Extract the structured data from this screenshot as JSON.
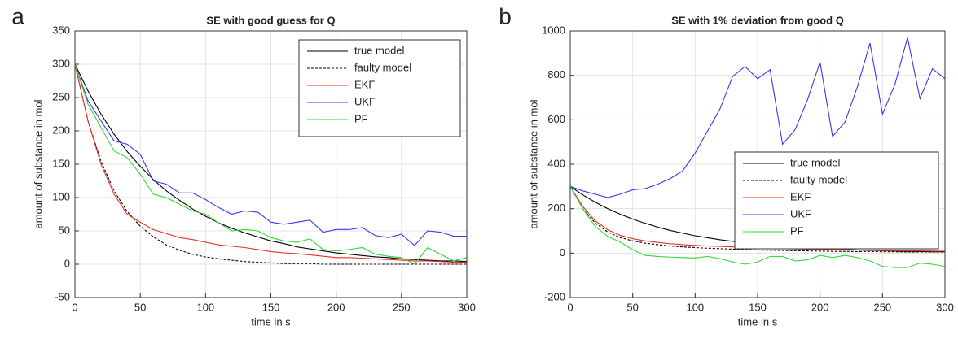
{
  "chart_data": [
    {
      "type": "line",
      "panel_label": "a",
      "title": "SE with good guess for Q",
      "x_label": "time in s",
      "y_label": "amount of substance in mol",
      "x": [
        0,
        10,
        20,
        30,
        40,
        50,
        60,
        70,
        80,
        90,
        100,
        110,
        120,
        130,
        140,
        150,
        160,
        170,
        180,
        190,
        200,
        210,
        220,
        230,
        240,
        250,
        260,
        270,
        280,
        290,
        300
      ],
      "xlim": [
        0,
        300
      ],
      "xticks": [
        0,
        50,
        100,
        150,
        200,
        250,
        300
      ],
      "ylim": [
        -50,
        350
      ],
      "yticks": [
        -50,
        0,
        50,
        100,
        150,
        200,
        250,
        300,
        350
      ],
      "grid": true,
      "legend": "upper right",
      "series": [
        {
          "name": "true model",
          "color": "#000000",
          "linestyle": "solid",
          "values": [
            300,
            260,
            225,
            195,
            169,
            147,
            127,
            110,
            96,
            83,
            72,
            62,
            54,
            47,
            41,
            35,
            31,
            26,
            23,
            20,
            17,
            15,
            13,
            11,
            10,
            8,
            7,
            6,
            5,
            5,
            4
          ]
        },
        {
          "name": "faulty model",
          "color": "#000000",
          "linestyle": "dashed",
          "values": [
            300,
            215,
            154,
            110,
            79,
            57,
            41,
            29,
            21,
            15,
            11,
            8,
            6,
            4,
            3,
            2,
            1,
            1,
            1,
            0,
            0,
            0,
            0,
            0,
            0,
            0,
            0,
            0,
            0,
            0,
            0
          ]
        },
        {
          "name": "EKF",
          "color": "#e8302a",
          "linestyle": "solid",
          "values": [
            300,
            215,
            150,
            105,
            75,
            63,
            52,
            46,
            40,
            37,
            33,
            29,
            27,
            25,
            22,
            19,
            17,
            16,
            14,
            12,
            10,
            10,
            9,
            8,
            7,
            6,
            5,
            5,
            4,
            3,
            3
          ]
        },
        {
          "name": "UKF",
          "color": "#3838f0",
          "linestyle": "solid",
          "values": [
            300,
            245,
            215,
            185,
            180,
            165,
            125,
            120,
            107,
            107,
            97,
            85,
            75,
            80,
            78,
            63,
            60,
            63,
            66,
            48,
            52,
            52,
            55,
            43,
            40,
            45,
            28,
            50,
            48,
            42,
            42
          ]
        },
        {
          "name": "PF",
          "color": "#35d735",
          "linestyle": "solid",
          "values": [
            300,
            240,
            205,
            170,
            160,
            135,
            105,
            100,
            90,
            80,
            75,
            62,
            50,
            52,
            50,
            40,
            35,
            33,
            38,
            22,
            20,
            22,
            25,
            15,
            12,
            10,
            0,
            25,
            15,
            5,
            10
          ]
        }
      ]
    },
    {
      "type": "line",
      "panel_label": "b",
      "title": "SE with 1% deviation from good Q",
      "x_label": "time in s",
      "y_label": "amount of substance in mol",
      "x": [
        0,
        10,
        20,
        30,
        40,
        50,
        60,
        70,
        80,
        90,
        100,
        110,
        120,
        130,
        140,
        150,
        160,
        170,
        180,
        190,
        200,
        210,
        220,
        230,
        240,
        250,
        260,
        270,
        280,
        290,
        300
      ],
      "xlim": [
        0,
        300
      ],
      "xticks": [
        0,
        50,
        100,
        150,
        200,
        250,
        300
      ],
      "ylim": [
        -200,
        1000
      ],
      "yticks": [
        -200,
        0,
        200,
        400,
        600,
        800,
        1000
      ],
      "grid": true,
      "legend": "lower right",
      "series": [
        {
          "name": "true model",
          "color": "#000000",
          "linestyle": "solid",
          "values": [
            300,
            262,
            229,
            200,
            175,
            153,
            134,
            117,
            102,
            90,
            78,
            69,
            60,
            53,
            46,
            40,
            35,
            31,
            27,
            24,
            21,
            18,
            16,
            14,
            12,
            11,
            9,
            8,
            7,
            6,
            6
          ]
        },
        {
          "name": "faulty model",
          "color": "#000000",
          "linestyle": "dashed",
          "values": [
            300,
            200,
            135,
            95,
            70,
            55,
            45,
            38,
            32,
            28,
            25,
            22,
            20,
            18,
            16,
            14,
            13,
            12,
            11,
            10,
            9,
            8,
            8,
            7,
            7,
            6,
            6,
            5,
            5,
            5,
            5
          ]
        },
        {
          "name": "EKF",
          "color": "#e8302a",
          "linestyle": "solid",
          "values": [
            300,
            210,
            145,
            105,
            80,
            65,
            55,
            48,
            42,
            38,
            35,
            32,
            30,
            28,
            26,
            24,
            22,
            20,
            19,
            18,
            17,
            16,
            15,
            14,
            13,
            12,
            11,
            10,
            10,
            9,
            9
          ]
        },
        {
          "name": "UKF",
          "color": "#3838f0",
          "linestyle": "solid",
          "values": [
            300,
            280,
            265,
            250,
            265,
            285,
            290,
            310,
            335,
            370,
            450,
            550,
            650,
            795,
            840,
            785,
            825,
            490,
            555,
            690,
            860,
            525,
            590,
            750,
            945,
            625,
            760,
            970,
            695,
            830,
            785
          ]
        },
        {
          "name": "PF",
          "color": "#35d735",
          "linestyle": "solid",
          "values": [
            300,
            200,
            120,
            75,
            50,
            15,
            -10,
            -15,
            -18,
            -20,
            -22,
            -15,
            -25,
            -40,
            -50,
            -40,
            -15,
            -15,
            -35,
            -30,
            -10,
            -20,
            -10,
            -20,
            -35,
            -60,
            -65,
            -65,
            -45,
            -50,
            -60
          ]
        }
      ]
    }
  ]
}
